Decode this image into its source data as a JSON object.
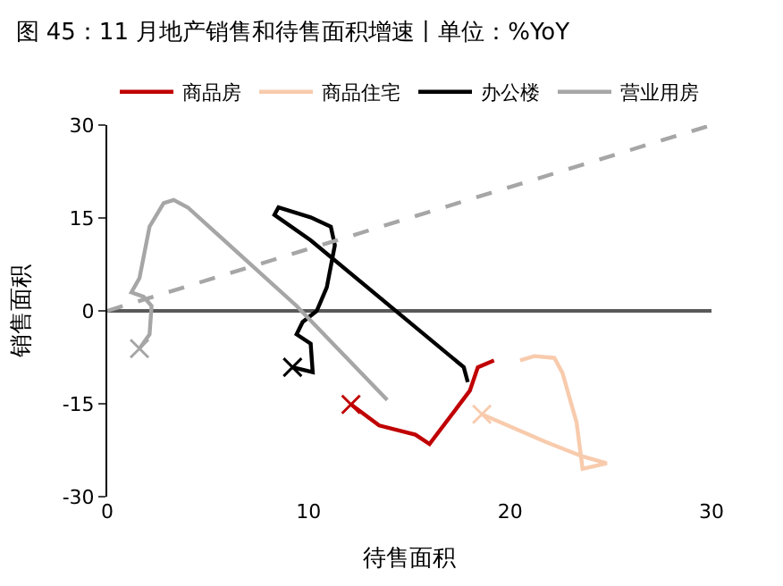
{
  "chart_data": {
    "type": "line",
    "title": "图 45：11 月地产销售和待售面积增速丨单位：%YoY",
    "xlabel": "待售面积",
    "ylabel": "销售面积",
    "xlim": [
      0,
      30
    ],
    "xticks": [
      0,
      10,
      20,
      30
    ],
    "ylim": [
      -30,
      30
    ],
    "yticks": [
      -30,
      -15,
      0,
      15,
      30
    ],
    "legend": "top",
    "ref_lines": [
      {
        "axis": "y",
        "value": 0,
        "color": "#595959"
      }
    ],
    "series": [
      {
        "name": "商品房",
        "color": "#c00000",
        "x": [
          12.1,
          13.5,
          15.3,
          16.0,
          18.0,
          18.4,
          19.2
        ],
        "values": [
          -15.1,
          -18.5,
          -20.0,
          -21.5,
          -12.9,
          -9.1,
          -8.0
        ]
      },
      {
        "name": "商品住宅",
        "color": "#f8cbad",
        "x": [
          18.6,
          21.8,
          23.6,
          24.8,
          23.6,
          23.3,
          22.6,
          22.2,
          21.2,
          20.5
        ],
        "values": [
          -16.7,
          -21.2,
          -23.5,
          -24.6,
          -25.5,
          -18.0,
          -10.0,
          -7.6,
          -7.3,
          -8.0
        ]
      },
      {
        "name": "办公楼",
        "color": "#000000",
        "x": [
          9.2,
          10.2,
          10.1,
          9.4,
          9.7,
          10.4,
          10.9,
          11.3,
          11.1,
          10.1,
          8.5,
          8.3,
          10.1,
          17.7,
          17.9
        ],
        "values": [
          -9.1,
          -9.9,
          -5.3,
          -3.8,
          -1.8,
          0.0,
          3.8,
          10.6,
          13.6,
          15.1,
          16.7,
          15.5,
          11.4,
          -9.1,
          -11.5
        ]
      },
      {
        "name": "营业用房",
        "color": "#a6a6a6",
        "x": [
          1.6,
          2.1,
          2.2,
          1.8,
          1.2,
          1.6,
          2.1,
          2.8,
          3.3,
          4.0,
          9.4,
          13.9
        ],
        "values": [
          -6.1,
          -3.8,
          0.8,
          2.3,
          3.0,
          5.3,
          13.6,
          17.4,
          17.9,
          16.7,
          0.8,
          -14.4
        ]
      },
      {
        "color": "#a6a6a6",
        "line_style": "dashed",
        "x": [
          0,
          30
        ],
        "values": [
          0,
          30
        ]
      },
      {
        "type": "scatter",
        "marker": "cross",
        "color": "#c00000",
        "x": [
          12.1
        ],
        "values": [
          -15.1
        ]
      },
      {
        "type": "scatter",
        "marker": "cross",
        "color": "#f8cbad",
        "x": [
          18.6
        ],
        "values": [
          -16.7
        ]
      },
      {
        "type": "scatter",
        "marker": "cross",
        "color": "#000000",
        "x": [
          9.2
        ],
        "values": [
          -9.1
        ]
      },
      {
        "type": "scatter",
        "marker": "cross",
        "color": "#a6a6a6",
        "x": [
          1.6
        ],
        "values": [
          -6.1
        ]
      }
    ]
  }
}
